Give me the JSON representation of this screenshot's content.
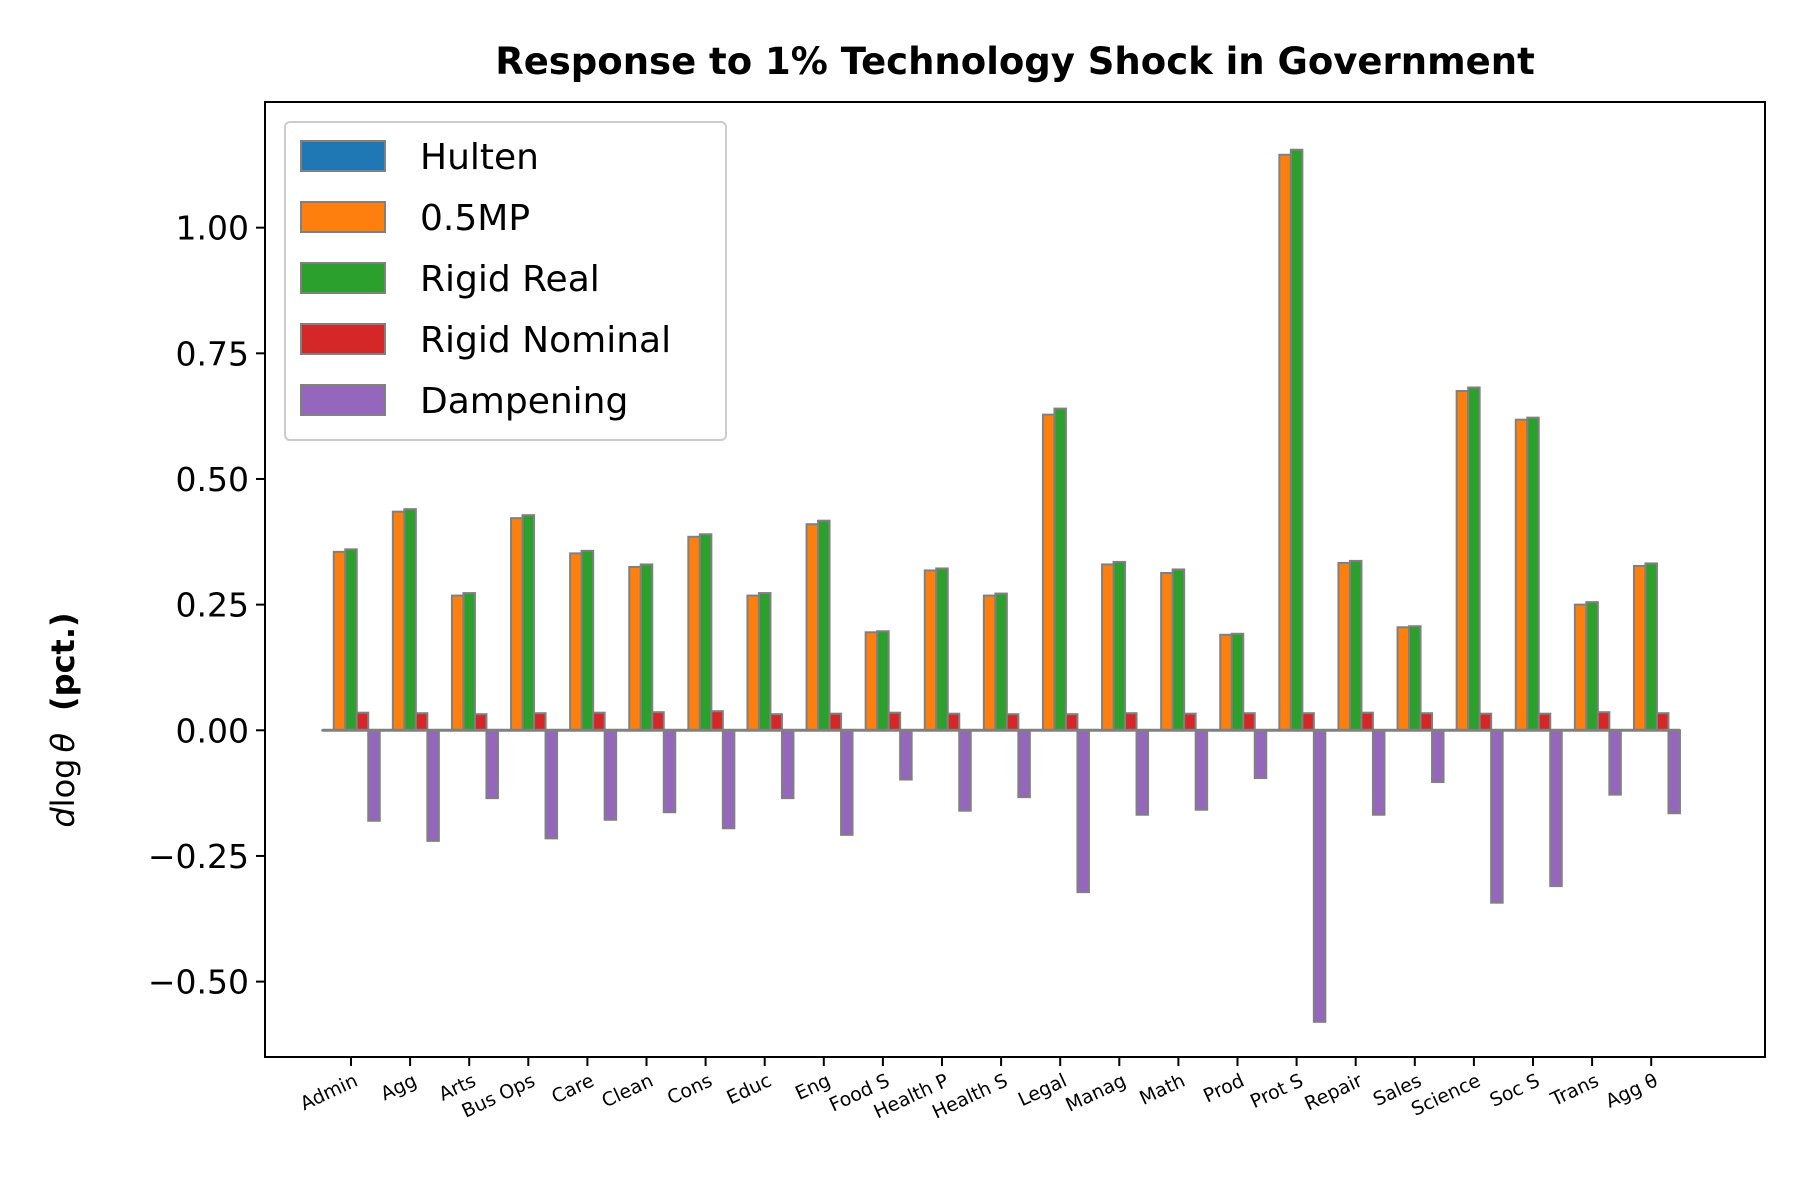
{
  "chart_data": {
    "type": "bar",
    "title": "Response to 1% Technology Shock in Government",
    "ylabel_italic": "d",
    "ylabel_log": "log",
    "ylabel_theta": "θ",
    "ylabel_bold": "(pct.)",
    "xlabel": "",
    "ylim": [
      -0.65,
      1.25
    ],
    "yticks": [
      -0.5,
      -0.25,
      0.0,
      0.25,
      0.5,
      0.75,
      1.0
    ],
    "ytick_labels": [
      "−0.50",
      "−0.25",
      "0.00",
      "0.25",
      "0.50",
      "0.75",
      "1.00"
    ],
    "categories": [
      "Admin",
      "Agg",
      "Arts",
      "Bus Ops",
      "Care",
      "Clean",
      "Cons",
      "Educ",
      "Eng",
      "Food S",
      "Health P",
      "Health S",
      "Legal",
      "Manag",
      "Math",
      "Prod",
      "Prot S",
      "Repair",
      "Sales",
      "Science",
      "Soc S",
      "Trans",
      "Agg θ"
    ],
    "legend_position": "top-left",
    "grid": false,
    "series": [
      {
        "name": "Hulten",
        "color": "#1f77b4",
        "values": [
          0,
          0,
          0,
          0,
          0,
          0,
          0,
          0,
          0,
          0,
          0,
          0,
          0,
          0,
          0,
          0,
          0,
          0,
          0,
          0,
          0,
          0,
          0
        ]
      },
      {
        "name": "0.5MP",
        "color": "#ff7f0e",
        "values": [
          0.355,
          0.435,
          0.268,
          0.422,
          0.352,
          0.325,
          0.385,
          0.268,
          0.41,
          0.195,
          0.318,
          0.268,
          0.628,
          0.33,
          0.313,
          0.19,
          1.145,
          0.333,
          0.205,
          0.675,
          0.618,
          0.25,
          0.327
        ]
      },
      {
        "name": "Rigid Real",
        "color": "#2ca02c",
        "values": [
          0.36,
          0.44,
          0.273,
          0.428,
          0.357,
          0.33,
          0.39,
          0.273,
          0.417,
          0.197,
          0.322,
          0.272,
          0.64,
          0.335,
          0.32,
          0.192,
          1.155,
          0.337,
          0.207,
          0.682,
          0.622,
          0.255,
          0.332
        ]
      },
      {
        "name": "Rigid Nominal",
        "color": "#d62728",
        "values": [
          0.035,
          0.034,
          0.032,
          0.034,
          0.035,
          0.036,
          0.038,
          0.032,
          0.033,
          0.035,
          0.033,
          0.032,
          0.032,
          0.034,
          0.033,
          0.034,
          0.034,
          0.035,
          0.034,
          0.033,
          0.033,
          0.036,
          0.034
        ]
      },
      {
        "name": "Dampening",
        "color": "#9467bd",
        "values": [
          -0.18,
          -0.22,
          -0.135,
          -0.215,
          -0.178,
          -0.163,
          -0.195,
          -0.135,
          -0.208,
          -0.098,
          -0.16,
          -0.133,
          -0.322,
          -0.168,
          -0.158,
          -0.095,
          -0.58,
          -0.168,
          -0.103,
          -0.343,
          -0.31,
          -0.128,
          -0.165
        ]
      }
    ]
  }
}
